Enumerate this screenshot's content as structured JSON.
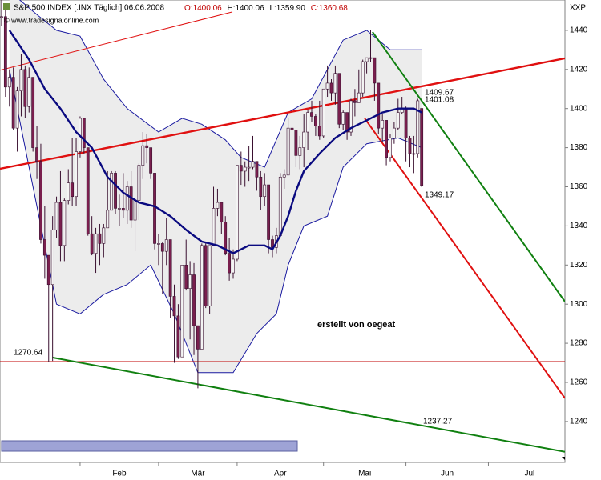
{
  "chart_data": {
    "type": "candlestick",
    "title": "S&P 500 INDEX [.INX  Täglich] 06.06.2008",
    "ohlc_labels": [
      "O:1400.06",
      "H:1400.06",
      "L:1359.90",
      "C:1360.68"
    ],
    "source": "© www.tradesignalonline.com",
    "symbol": "XXP",
    "author": "erstellt von oegeat",
    "up_color": "#f4f4f4",
    "down_color": "#7a1f4e",
    "wick_color": "#3a1030",
    "band_fill": "#ececec",
    "x": [
      0,
      1,
      2,
      3,
      4,
      5,
      6,
      7,
      8,
      9,
      10,
      11,
      12,
      13,
      14,
      15,
      16,
      17,
      18,
      19,
      20,
      21,
      22,
      23,
      24,
      25,
      26,
      27,
      28,
      29,
      30,
      31,
      32,
      33,
      34,
      35,
      36,
      37,
      38,
      39,
      40,
      41,
      42,
      43,
      44,
      45,
      46,
      47,
      48,
      49,
      50,
      51,
      52,
      53,
      54,
      55,
      56,
      57,
      58,
      59,
      60,
      61,
      62,
      63,
      64,
      65,
      66,
      67,
      68,
      69,
      70,
      71,
      72,
      73,
      74,
      75,
      76,
      77,
      78,
      79,
      80,
      81,
      82,
      83,
      84,
      85,
      86,
      87,
      88,
      89,
      90,
      91,
      92,
      93,
      94,
      95,
      96,
      97,
      98,
      99,
      100,
      101,
      102,
      103,
      104,
      105,
      106,
      107,
      108
    ],
    "open": [
      1467,
      1447,
      1447,
      1411,
      1416,
      1390,
      1409,
      1420,
      1401,
      1416,
      1380,
      1373,
      1333,
      1325,
      1310,
      1338,
      1352,
      1330,
      1353,
      1362,
      1355,
      1378,
      1395,
      1380,
      1336,
      1326,
      1336,
      1331,
      1339,
      1348,
      1367,
      1349,
      1349,
      1348,
      1360,
      1343,
      1353,
      1371,
      1381,
      1380,
      1367,
      1331,
      1331,
      1327,
      1333,
      1304,
      1294,
      1273,
      1320,
      1308,
      1315,
      1289,
      1277,
      1330,
      1299,
      1330,
      1349,
      1352,
      1342,
      1326,
      1316,
      1323,
      1371,
      1368,
      1370,
      1370,
      1373,
      1365,
      1355,
      1361,
      1333,
      1329,
      1335,
      1365,
      1366,
      1390,
      1389,
      1376,
      1380,
      1388,
      1398,
      1396,
      1391,
      1386,
      1410,
      1413,
      1408,
      1418,
      1392,
      1398,
      1388,
      1404,
      1403,
      1408,
      1424,
      1426,
      1426,
      1413,
      1390,
      1394,
      1375,
      1385,
      1390,
      1398,
      1400,
      1385,
      1377,
      1377,
      1400.06
    ],
    "high": [
      1471,
      1456,
      1451,
      1420,
      1421,
      1411,
      1428,
      1422,
      1421,
      1416,
      1391,
      1382,
      1350,
      1325,
      1345,
      1355,
      1368,
      1354,
      1369,
      1385,
      1385,
      1396,
      1395,
      1380,
      1345,
      1339,
      1341,
      1341,
      1368,
      1368,
      1368,
      1356,
      1367,
      1363,
      1368,
      1354,
      1372,
      1388,
      1387,
      1380,
      1367,
      1336,
      1332,
      1344,
      1333,
      1310,
      1300,
      1320,
      1333,
      1322,
      1321,
      1289,
      1331,
      1331,
      1330,
      1360,
      1359,
      1352,
      1345,
      1334,
      1328,
      1371,
      1378,
      1373,
      1381,
      1386,
      1373,
      1368,
      1367,
      1361,
      1335,
      1339,
      1367,
      1369,
      1395,
      1391,
      1389,
      1386,
      1397,
      1399,
      1404,
      1397,
      1404,
      1410,
      1422,
      1415,
      1422,
      1418,
      1399,
      1398,
      1405,
      1410,
      1420,
      1425,
      1426,
      1440,
      1426,
      1413,
      1397,
      1394,
      1387,
      1393,
      1405,
      1406,
      1401,
      1386,
      1386,
      1405,
      1400.06
    ],
    "low": [
      1442,
      1442,
      1406,
      1401,
      1389,
      1378,
      1396,
      1395,
      1398,
      1378,
      1364,
      1331,
      1313,
      1270.64,
      1271,
      1334,
      1322,
      1322,
      1351,
      1350,
      1350,
      1375,
      1377,
      1335,
      1325,
      1316,
      1320,
      1324,
      1339,
      1348,
      1346,
      1340,
      1344,
      1341,
      1339,
      1327,
      1343,
      1364,
      1372,
      1364,
      1328,
      1320,
      1305,
      1320,
      1293,
      1270,
      1272,
      1274,
      1307,
      1282,
      1274,
      1256.98,
      1277,
      1298,
      1295,
      1330,
      1345,
      1336,
      1325,
      1312,
      1313,
      1322,
      1361,
      1360,
      1363,
      1369,
      1358,
      1348,
      1350,
      1326,
      1324,
      1326,
      1335,
      1359,
      1366,
      1380,
      1370,
      1369,
      1370,
      1379,
      1393,
      1386,
      1384,
      1385,
      1406,
      1404,
      1402,
      1390,
      1389,
      1384,
      1386,
      1396,
      1403,
      1406,
      1418,
      1424,
      1404,
      1387,
      1383,
      1371,
      1373,
      1382,
      1389,
      1397,
      1373,
      1370,
      1367,
      1375,
      1359.9
    ],
    "close": [
      1447,
      1447,
      1411,
      1416,
      1390,
      1409,
      1420,
      1401,
      1416,
      1380,
      1373,
      1333,
      1325,
      1310,
      1338,
      1352,
      1330,
      1353,
      1362,
      1355,
      1378,
      1395,
      1380,
      1336,
      1326,
      1336,
      1331,
      1339,
      1348,
      1367,
      1349,
      1349,
      1348,
      1360,
      1343,
      1353,
      1371,
      1381,
      1380,
      1367,
      1331,
      1331,
      1327,
      1333,
      1304,
      1294,
      1273,
      1320,
      1308,
      1315,
      1289,
      1277,
      1330,
      1299,
      1330,
      1349,
      1352,
      1342,
      1326,
      1316,
      1323,
      1371,
      1368,
      1370,
      1370,
      1373,
      1365,
      1355,
      1361,
      1333,
      1329,
      1335,
      1365,
      1366,
      1390,
      1389,
      1376,
      1380,
      1388,
      1398,
      1396,
      1391,
      1386,
      1410,
      1413,
      1408,
      1418,
      1392,
      1398,
      1388,
      1404,
      1403,
      1408,
      1424,
      1426,
      1426,
      1413,
      1390,
      1394,
      1375,
      1385,
      1390,
      1398,
      1400,
      1385,
      1377,
      1377,
      1404,
      1360.68
    ],
    "bands": [
      {
        "x": [
          3,
          10,
          15,
          21,
          27,
          33,
          41,
          47,
          52,
          58,
          62,
          68,
          74,
          80,
          84,
          88,
          94,
          100,
          108
        ],
        "values": [
          1460,
          1448,
          1440,
          1437,
          1415,
          1400,
          1388,
          1395,
          1392,
          1384,
          1375,
          1370,
          1398,
          1405,
          1420,
          1435,
          1440,
          1430,
          1430
        ],
        "color": "#1a1aa0",
        "width": 1
      },
      {
        "x": [
          3,
          11,
          15,
          21,
          27,
          33,
          39,
          45,
          51,
          60,
          66,
          71,
          74,
          78,
          84,
          88,
          94,
          102,
          108
        ],
        "values": [
          1420,
          1340,
          1300,
          1295,
          1305,
          1310,
          1320,
          1295,
          1265,
          1265,
          1285,
          1295,
          1320,
          1340,
          1345,
          1370,
          1382,
          1385,
          1380
        ],
        "color": "#1a1aa0",
        "width": 1
      }
    ],
    "overlays": [
      {
        "x": [
          3,
          8,
          12,
          16,
          20,
          24,
          28,
          32,
          36,
          40,
          44,
          48,
          52,
          56,
          60,
          64,
          68,
          70,
          72,
          74,
          76,
          78,
          82,
          86,
          90,
          94,
          98,
          102,
          106,
          108
        ],
        "values": [
          1440,
          1425,
          1410,
          1400,
          1388,
          1380,
          1365,
          1357,
          1352,
          1350,
          1345,
          1338,
          1332,
          1330,
          1326,
          1330,
          1330,
          1328,
          1335,
          1345,
          1358,
          1368,
          1377,
          1385,
          1390,
          1394,
          1398,
          1400,
          1400,
          1398
        ],
        "color": "#0a0a80",
        "width": 2.4
      }
    ],
    "lines": [
      {
        "x": [
          0.6,
          144.5
        ],
        "values": [
          1369.2,
          1425.7
        ],
        "color": "#e01010",
        "width": 2.4
      },
      {
        "x": [
          0.6,
          59.8
        ],
        "values": [
          1419.6,
          1449.4
        ],
        "color": "#e01010",
        "width": 1
      },
      {
        "x": [
          95.5,
          144.5
        ],
        "values": [
          1439.2,
          1301.3
        ],
        "color": "#108010",
        "width": 2
      },
      {
        "x": [
          93.5,
          144.5
        ],
        "values": [
          1395,
          1251.9
        ],
        "color": "#e01010",
        "width": 2
      },
      {
        "x": [
          13.9,
          144.5
        ],
        "values": [
          1272.7,
          1224.5
        ],
        "color": "#108010",
        "width": 2
      }
    ],
    "hlines": [
      {
        "value": 1270.64,
        "color": "#c00000"
      }
    ],
    "annotations": [
      {
        "text": "1409.67",
        "color": "#c00000"
      },
      {
        "text": "1401.08",
        "color": "#108010"
      },
      {
        "text": "1349.17",
        "color": "#c00000"
      },
      {
        "text": "1270.64",
        "color": "#c00000"
      },
      {
        "text": "1237.27",
        "color": "#108010"
      }
    ],
    "xlim": [
      0.6,
      144.5
    ],
    "xticks": [
      {
        "value": 21,
        "label": "Feb"
      },
      {
        "value": 41,
        "label": "Mär"
      },
      {
        "value": 61,
        "label": "Apr"
      },
      {
        "value": 83,
        "label": "Mai"
      },
      {
        "value": 104,
        "label": "Jun"
      },
      {
        "value": 125,
        "label": "Jul"
      }
    ],
    "ylim": [
      1219.1,
      1455.5
    ],
    "yticks": [
      1240,
      1260,
      1280,
      1300,
      1320,
      1340,
      1360,
      1380,
      1400,
      1420,
      1440
    ]
  }
}
